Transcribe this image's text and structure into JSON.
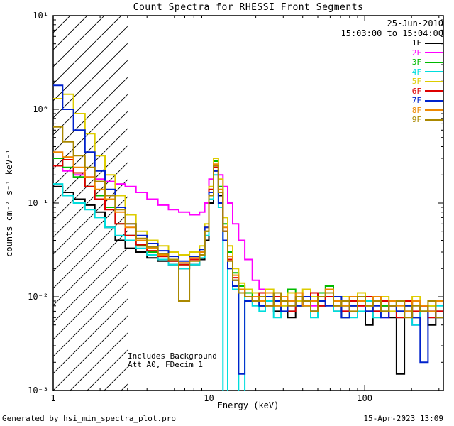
{
  "annotations": {
    "date": "25-Jun-2010",
    "time_range": "15:03:00 to 15:04:00",
    "note_line1": "Includes Background",
    "note_line2": "Att A0, FDecim 1"
  },
  "footer": {
    "left": "Generated by hsi_min_spectra_plot.pro",
    "right": "15-Apr-2023 13:09"
  },
  "axes": {
    "xlim": [
      1,
      320
    ],
    "ylim": [
      0.001,
      10
    ],
    "x_log": true,
    "y_log": true,
    "x_ticks": [
      {
        "value": 1,
        "label": "1"
      },
      {
        "value": 10,
        "label": "10"
      },
      {
        "value": 100,
        "label": "100"
      }
    ],
    "y_ticks": [
      {
        "value": 10,
        "label": "10¹"
      },
      {
        "value": 1,
        "label": "10⁰"
      },
      {
        "value": 0.1,
        "label": "10⁻¹"
      },
      {
        "value": 0.01,
        "label": "10⁻²"
      },
      {
        "value": 0.001,
        "label": "10⁻³"
      }
    ]
  },
  "hatch_region": {
    "x_start": 1,
    "x_end": 3
  },
  "chart_data": {
    "type": "line",
    "title": "Count Spectra for RHESSI Front Segments",
    "xlabel": "Energy (keV)",
    "ylabel": "counts cm⁻² s⁻¹ keV⁻¹",
    "xlim": [
      1,
      320
    ],
    "ylim": [
      0.001,
      10
    ],
    "x_scale": "log",
    "y_scale": "log",
    "legend_position": "upper right",
    "step_mode": true,
    "x": [
      1.0,
      1.15,
      1.35,
      1.6,
      1.85,
      2.15,
      2.5,
      2.9,
      3.4,
      4.0,
      4.7,
      5.5,
      6.4,
      7.5,
      8.7,
      9.4,
      10.0,
      10.7,
      11.5,
      12.3,
      13.2,
      14.2,
      15.5,
      17,
      19,
      21,
      23,
      26,
      29,
      32,
      36,
      40,
      45,
      50,
      56,
      63,
      71,
      80,
      90,
      101,
      113,
      127,
      143,
      160,
      180,
      202,
      227,
      255,
      286,
      320
    ],
    "series": [
      {
        "name": "1F",
        "color": "#000000",
        "values": [
          0.15,
          0.13,
          0.11,
          0.095,
          0.08,
          0.055,
          0.04,
          0.033,
          0.03,
          0.026,
          0.024,
          0.022,
          0.02,
          0.022,
          0.025,
          0.04,
          0.1,
          0.22,
          0.12,
          0.05,
          0.025,
          0.015,
          0.012,
          0.01,
          0.009,
          0.008,
          0.01,
          0.007,
          0.009,
          0.006,
          0.008,
          0.009,
          0.007,
          0.008,
          0.01,
          0.007,
          0.006,
          0.008,
          0.009,
          0.005,
          0.007,
          0.008,
          0.006,
          0.0015,
          0.007,
          0.006,
          0.008,
          0.005,
          0.007,
          0.006
        ]
      },
      {
        "name": "2F",
        "color": "#ff00ff",
        "values": [
          0.25,
          0.22,
          0.2,
          0.19,
          0.18,
          0.17,
          0.16,
          0.15,
          0.13,
          0.11,
          0.095,
          0.085,
          0.08,
          0.075,
          0.08,
          0.1,
          0.18,
          0.25,
          0.2,
          0.15,
          0.1,
          0.06,
          0.04,
          0.025,
          0.015,
          0.012,
          0.01,
          0.009,
          0.01,
          0.008,
          0.009,
          0.01,
          0.008,
          0.009,
          0.011,
          0.008,
          0.007,
          0.009,
          0.008,
          0.007,
          0.009,
          0.006,
          0.008,
          0.007,
          0.009,
          0.005,
          0.008,
          0.007,
          0.006,
          0.008
        ]
      },
      {
        "name": "3F",
        "color": "#00bb00",
        "values": [
          0.3,
          0.24,
          0.19,
          0.15,
          0.12,
          0.09,
          0.06,
          0.045,
          0.035,
          0.03,
          0.027,
          0.024,
          0.022,
          0.025,
          0.028,
          0.05,
          0.13,
          0.28,
          0.15,
          0.06,
          0.03,
          0.018,
          0.013,
          0.011,
          0.01,
          0.009,
          0.011,
          0.008,
          0.01,
          0.012,
          0.009,
          0.008,
          0.01,
          0.011,
          0.013,
          0.009,
          0.008,
          0.01,
          0.009,
          0.007,
          0.01,
          0.008,
          0.009,
          0.007,
          0.008,
          0.009,
          0.007,
          0.008,
          0.006,
          0.007
        ]
      },
      {
        "name": "4F",
        "color": "#00dddd",
        "values": [
          0.16,
          0.12,
          0.1,
          0.085,
          0.07,
          0.055,
          0.045,
          0.04,
          0.033,
          0.028,
          0.025,
          0.022,
          0.02,
          0.022,
          0.026,
          0.045,
          0.11,
          0.2,
          0.09,
          0.0008,
          0.02,
          0.012,
          0.0009,
          0.01,
          0.008,
          0.007,
          0.009,
          0.006,
          0.008,
          0.007,
          0.009,
          0.008,
          0.006,
          0.009,
          0.01,
          0.007,
          0.008,
          0.006,
          0.007,
          0.009,
          0.006,
          0.007,
          0.008,
          0.006,
          0.007,
          0.005,
          0.007,
          0.006,
          0.008,
          0.005
        ]
      },
      {
        "name": "5F",
        "color": "#ddcc00",
        "values": [
          1.3,
          1.45,
          0.9,
          0.55,
          0.32,
          0.2,
          0.12,
          0.075,
          0.05,
          0.04,
          0.035,
          0.03,
          0.028,
          0.03,
          0.035,
          0.06,
          0.15,
          0.3,
          0.18,
          0.07,
          0.035,
          0.02,
          0.014,
          0.012,
          0.011,
          0.009,
          0.012,
          0.01,
          0.008,
          0.011,
          0.009,
          0.012,
          0.01,
          0.009,
          0.011,
          0.008,
          0.01,
          0.009,
          0.011,
          0.008,
          0.009,
          0.01,
          0.007,
          0.009,
          0.008,
          0.01,
          0.007,
          0.008,
          0.009,
          0.007
        ]
      },
      {
        "name": "6F",
        "color": "#dd0000",
        "values": [
          0.25,
          0.29,
          0.21,
          0.15,
          0.11,
          0.085,
          0.06,
          0.045,
          0.036,
          0.031,
          0.027,
          0.024,
          0.022,
          0.025,
          0.03,
          0.055,
          0.14,
          0.24,
          0.13,
          0.05,
          0.025,
          0.016,
          0.012,
          0.01,
          0.009,
          0.011,
          0.008,
          0.01,
          0.009,
          0.007,
          0.01,
          0.009,
          0.011,
          0.008,
          0.01,
          0.009,
          0.007,
          0.009,
          0.008,
          0.01,
          0.007,
          0.009,
          0.008,
          0.006,
          0.009,
          0.007,
          0.008,
          0.006,
          0.007,
          0.008
        ]
      },
      {
        "name": "7F",
        "color": "#0022cc",
        "values": [
          1.8,
          1.0,
          0.6,
          0.35,
          0.22,
          0.14,
          0.09,
          0.06,
          0.045,
          0.037,
          0.031,
          0.027,
          0.024,
          0.027,
          0.032,
          0.055,
          0.13,
          0.22,
          0.1,
          0.04,
          0.02,
          0.013,
          0.0015,
          0.009,
          0.009,
          0.008,
          0.01,
          0.009,
          0.007,
          0.009,
          0.008,
          0.01,
          0.007,
          0.009,
          0.008,
          0.01,
          0.006,
          0.008,
          0.009,
          0.007,
          0.008,
          0.006,
          0.009,
          0.007,
          0.008,
          0.006,
          0.002,
          0.007,
          0.006,
          0.008
        ]
      },
      {
        "name": "8F",
        "color": "#ee8800",
        "values": [
          0.35,
          0.31,
          0.24,
          0.19,
          0.14,
          0.11,
          0.08,
          0.055,
          0.04,
          0.033,
          0.028,
          0.025,
          0.023,
          0.026,
          0.03,
          0.05,
          0.12,
          0.26,
          0.14,
          0.055,
          0.027,
          0.017,
          0.012,
          0.01,
          0.01,
          0.009,
          0.011,
          0.008,
          0.01,
          0.009,
          0.011,
          0.008,
          0.009,
          0.01,
          0.012,
          0.009,
          0.008,
          0.01,
          0.009,
          0.008,
          0.01,
          0.007,
          0.009,
          0.008,
          0.007,
          0.009,
          0.008,
          0.007,
          0.009,
          0.006
        ]
      },
      {
        "name": "9F",
        "color": "#aa8800",
        "values": [
          0.65,
          0.45,
          0.32,
          0.24,
          0.17,
          0.12,
          0.085,
          0.06,
          0.042,
          0.034,
          0.029,
          0.025,
          0.009,
          0.024,
          0.028,
          0.05,
          0.12,
          0.25,
          0.13,
          0.05,
          0.024,
          0.015,
          0.011,
          0.01,
          0.009,
          0.01,
          0.008,
          0.011,
          0.009,
          0.008,
          0.01,
          0.009,
          0.007,
          0.01,
          0.011,
          0.008,
          0.009,
          0.007,
          0.01,
          0.008,
          0.009,
          0.007,
          0.008,
          0.009,
          0.006,
          0.008,
          0.007,
          0.009,
          0.006,
          0.007
        ]
      }
    ]
  }
}
